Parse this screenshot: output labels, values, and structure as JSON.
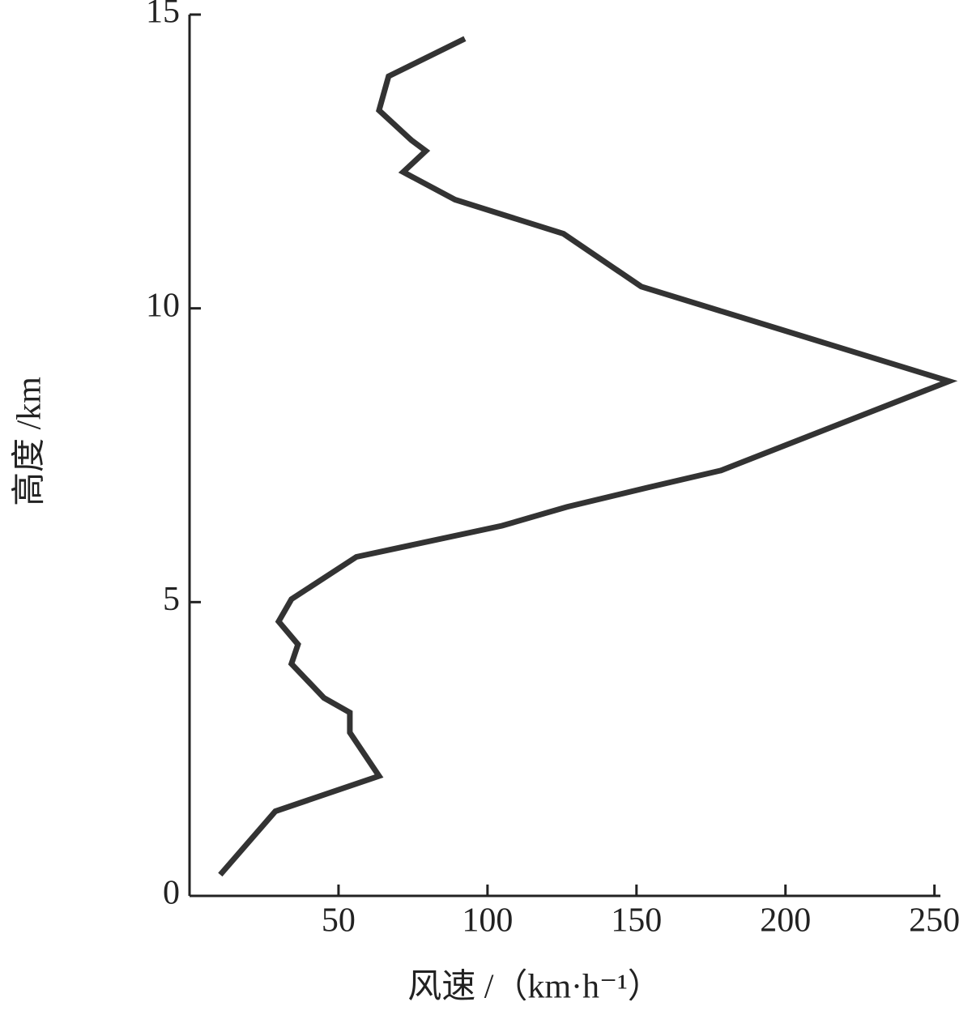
{
  "chart_data": {
    "type": "line",
    "x_label": "风速 /（km·h⁻¹）",
    "y_label": "高度 /km",
    "series": [
      {
        "color": "#333333",
        "x": [
          10.3,
          28.8,
          63.6,
          53.8,
          53.8,
          45.1,
          34.2,
          36.4,
          29.9,
          34.2,
          56.0,
          104.9,
          126.6,
          153.8,
          178.3,
          254.9,
          151.6,
          125.5,
          89.1,
          71.7,
          79.3,
          74.5,
          63.6,
          66.8,
          92.4
        ],
        "values": [
          0.36,
          1.44,
          2.04,
          2.78,
          3.12,
          3.37,
          3.95,
          4.28,
          4.67,
          5.05,
          5.77,
          6.3,
          6.62,
          6.95,
          7.24,
          8.76,
          10.37,
          11.27,
          11.85,
          12.32,
          12.68,
          12.86,
          13.37,
          13.95,
          14.59
        ]
      }
    ],
    "xlim": [
      0,
      252
    ],
    "xticks": [
      50,
      100,
      150,
      200,
      250
    ],
    "ylim": [
      0,
      15
    ],
    "yticks": [
      0,
      5,
      10,
      15
    ]
  }
}
